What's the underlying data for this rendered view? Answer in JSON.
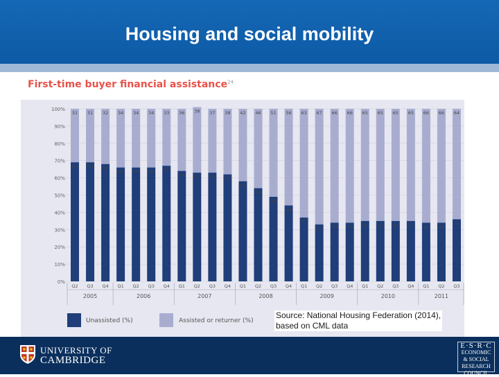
{
  "slide": {
    "title": "Housing and social mobility",
    "source_line1": "Source: National Housing Federation (2014),",
    "source_line2": "based on CML data"
  },
  "footer": {
    "university_line1": "UNIVERSITY OF",
    "university_line2": "CAMBRIDGE",
    "esrc_line1": "E·S·R·C",
    "esrc_line2": "ECONOMIC",
    "esrc_line3": "& SOCIAL",
    "esrc_line4": "RESEARCH",
    "esrc_line5": "COUNCIL"
  },
  "colors": {
    "header": "#1568b5",
    "unassisted": "#1f3e7a",
    "assisted": "#a8add0",
    "title_red": "#e8524a",
    "footer": "#0a2f5c"
  },
  "chart_data": {
    "type": "bar",
    "stacked": true,
    "title": "First-time buyer financial assistance",
    "title_footnote": "24",
    "categories": [
      "Q2",
      "Q3",
      "Q4",
      "Q1",
      "Q2",
      "Q3",
      "Q4",
      "Q1",
      "Q2",
      "Q3",
      "Q4",
      "Q1",
      "Q2",
      "Q3",
      "Q4",
      "Q1",
      "Q2",
      "Q3",
      "Q4",
      "Q1",
      "Q2",
      "Q3",
      "Q4",
      "Q1",
      "Q2",
      "Q3"
    ],
    "years": [
      {
        "label": "2005",
        "quarters": 3
      },
      {
        "label": "2006",
        "quarters": 4
      },
      {
        "label": "2007",
        "quarters": 4
      },
      {
        "label": "2008",
        "quarters": 4
      },
      {
        "label": "2009",
        "quarters": 4
      },
      {
        "label": "2010",
        "quarters": 4
      },
      {
        "label": "2011",
        "quarters": 3
      }
    ],
    "series": [
      {
        "name": "Unassisted (%)",
        "color": "#1f3e7a",
        "values": [
          69,
          69,
          68,
          66,
          66,
          66,
          67,
          64,
          63,
          63,
          62,
          58,
          54,
          49,
          44,
          37,
          33,
          34,
          34,
          35,
          35,
          35,
          35,
          34,
          34,
          36
        ]
      },
      {
        "name": "Assisted or returner (%)",
        "color": "#a8add0",
        "values": [
          31,
          31,
          32,
          34,
          34,
          34,
          33,
          36,
          38,
          37,
          38,
          42,
          46,
          51,
          56,
          63,
          67,
          66,
          66,
          65,
          65,
          65,
          65,
          66,
          66,
          64
        ]
      }
    ],
    "y_ticks": [
      "100%",
      "90%",
      "80%",
      "70%",
      "60%",
      "50%",
      "40%",
      "30%",
      "20%",
      "10%",
      "0%"
    ],
    "ylim": [
      0,
      100
    ],
    "grid": true,
    "legend_position": "bottom"
  }
}
